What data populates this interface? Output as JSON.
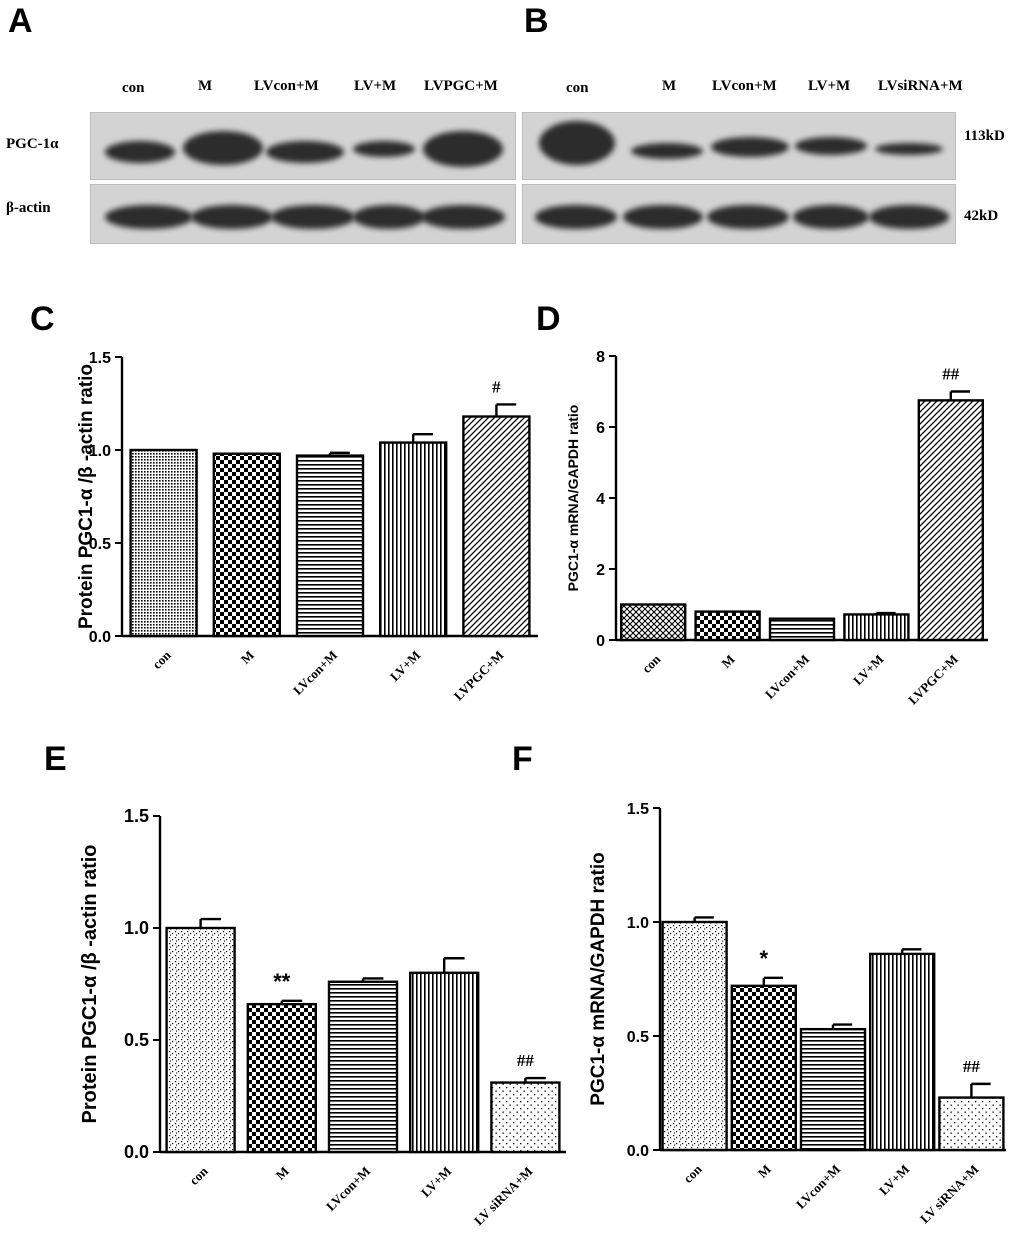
{
  "panels": {
    "A": {
      "label": "A",
      "lanes": [
        "con",
        "M",
        "LVcon+M",
        "LV+M",
        "LVPGC+M"
      ],
      "rows": [
        "PGC-1α",
        "β-actin"
      ]
    },
    "B": {
      "label": "B",
      "lanes": [
        "con",
        "M",
        "LVcon+M",
        "LV+M",
        "LVsiRNA+M"
      ],
      "markers": [
        "113kD",
        "42kD"
      ]
    }
  },
  "chart_data": [
    {
      "panel": "C",
      "type": "bar",
      "title": "",
      "ylabel": "Protein PGC1-α /β -actin ratio",
      "xlabel": "",
      "categories": [
        "con",
        "M",
        "LVcon+M",
        "LV+M",
        "LVPGC+M"
      ],
      "values": [
        1.0,
        0.98,
        0.97,
        1.04,
        1.18
      ],
      "errors": [
        0.0,
        0.0,
        0.015,
        0.045,
        0.065
      ],
      "annotations": [
        "",
        "",
        "",
        "",
        "#"
      ],
      "ylim": [
        0,
        1.5
      ],
      "yticks": [
        "0.0",
        "0.5",
        "1.0",
        "1.5"
      ],
      "patterns": [
        "dots-dense",
        "checker",
        "hlines",
        "vlines",
        "diag"
      ]
    },
    {
      "panel": "D",
      "type": "bar",
      "title": "",
      "ylabel": "PGC1-α  mRNA/GAPDH ratio",
      "xlabel": "",
      "categories": [
        "con",
        "M",
        "LVcon+M",
        "LV+M",
        "LVPGC+M"
      ],
      "values": [
        1.0,
        0.8,
        0.6,
        0.72,
        6.75
      ],
      "errors": [
        0.0,
        0.0,
        0.0,
        0.04,
        0.25
      ],
      "annotations": [
        "",
        "",
        "",
        "",
        "##"
      ],
      "ylim": [
        0,
        8
      ],
      "yticks": [
        "0",
        "2",
        "4",
        "6",
        "8"
      ],
      "patterns": [
        "crosshatch",
        "checker",
        "hlines",
        "vlines",
        "diag"
      ]
    },
    {
      "panel": "E",
      "type": "bar",
      "title": "",
      "ylabel": "Protein PGC1-α /β -actin ratio",
      "xlabel": "",
      "categories": [
        "con",
        "M",
        "LVcon+M",
        "LV+M",
        "LV siRNA+M"
      ],
      "values": [
        1.0,
        0.66,
        0.76,
        0.8,
        0.31
      ],
      "errors": [
        0.04,
        0.015,
        0.015,
        0.065,
        0.02
      ],
      "annotations": [
        "",
        "**",
        "",
        "",
        "##"
      ],
      "ylim": [
        0,
        1.5
      ],
      "yticks": [
        "0.0",
        "0.5",
        "1.0",
        "1.5"
      ],
      "patterns": [
        "speckle",
        "checker",
        "hlines",
        "vlines",
        "sparse-dots"
      ]
    },
    {
      "panel": "F",
      "type": "bar",
      "title": "",
      "ylabel": "PGC1-α  mRNA/GAPDH ratio",
      "xlabel": "",
      "categories": [
        "con",
        "M",
        "LVcon+M",
        "LV+M",
        "LV siRNA+M"
      ],
      "values": [
        1.0,
        0.72,
        0.53,
        0.86,
        0.23
      ],
      "errors": [
        0.02,
        0.035,
        0.02,
        0.02,
        0.06
      ],
      "annotations": [
        "",
        "*",
        "",
        "",
        "##"
      ],
      "ylim": [
        0,
        1.5
      ],
      "yticks": [
        "0.0",
        "0.5",
        "1.0",
        "1.5"
      ],
      "patterns": [
        "speckle",
        "checker",
        "hlines",
        "vlines",
        "sparse-dots"
      ]
    }
  ]
}
